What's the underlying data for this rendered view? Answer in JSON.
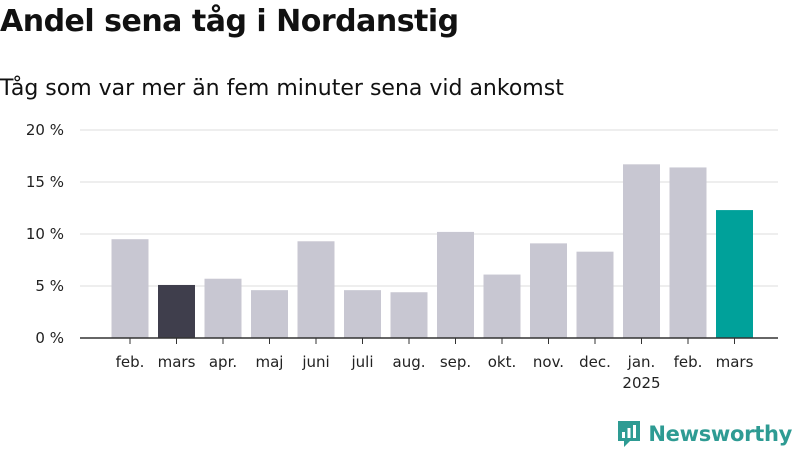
{
  "title": "Andel sena tåg i Nordanstig",
  "subtitle": "Tåg som var mer än fem minuter sena vid ankomst",
  "brand": "Newsworthy",
  "colors": {
    "default_bar": "#c8c7d2",
    "previous_year_bar": "#3f3e4c",
    "current_bar": "#00a19a",
    "grid": "#dddddd",
    "axis": "#333333",
    "brand": "#2e9b93"
  },
  "chart_data": {
    "type": "bar",
    "categories": [
      "feb.",
      "mars",
      "apr.",
      "maj",
      "juni",
      "juli",
      "aug.",
      "sep.",
      "okt.",
      "nov.",
      "dec.",
      "jan.",
      "feb.",
      "mars"
    ],
    "year_labels": [
      "",
      "",
      "",
      "",
      "",
      "",
      "",
      "",
      "",
      "",
      "",
      "2025",
      "",
      ""
    ],
    "values": [
      9.5,
      5.1,
      5.7,
      4.6,
      9.3,
      4.6,
      4.4,
      10.2,
      6.1,
      9.1,
      8.3,
      16.7,
      16.4,
      12.3
    ],
    "highlight": [
      "default",
      "previous_year",
      "default",
      "default",
      "default",
      "default",
      "default",
      "default",
      "default",
      "default",
      "default",
      "default",
      "default",
      "current"
    ],
    "yticks": [
      "0 %",
      "5 %",
      "10 %",
      "15 %",
      "20 %"
    ],
    "ylim": [
      0,
      20
    ],
    "unit": "%",
    "grid": true
  }
}
